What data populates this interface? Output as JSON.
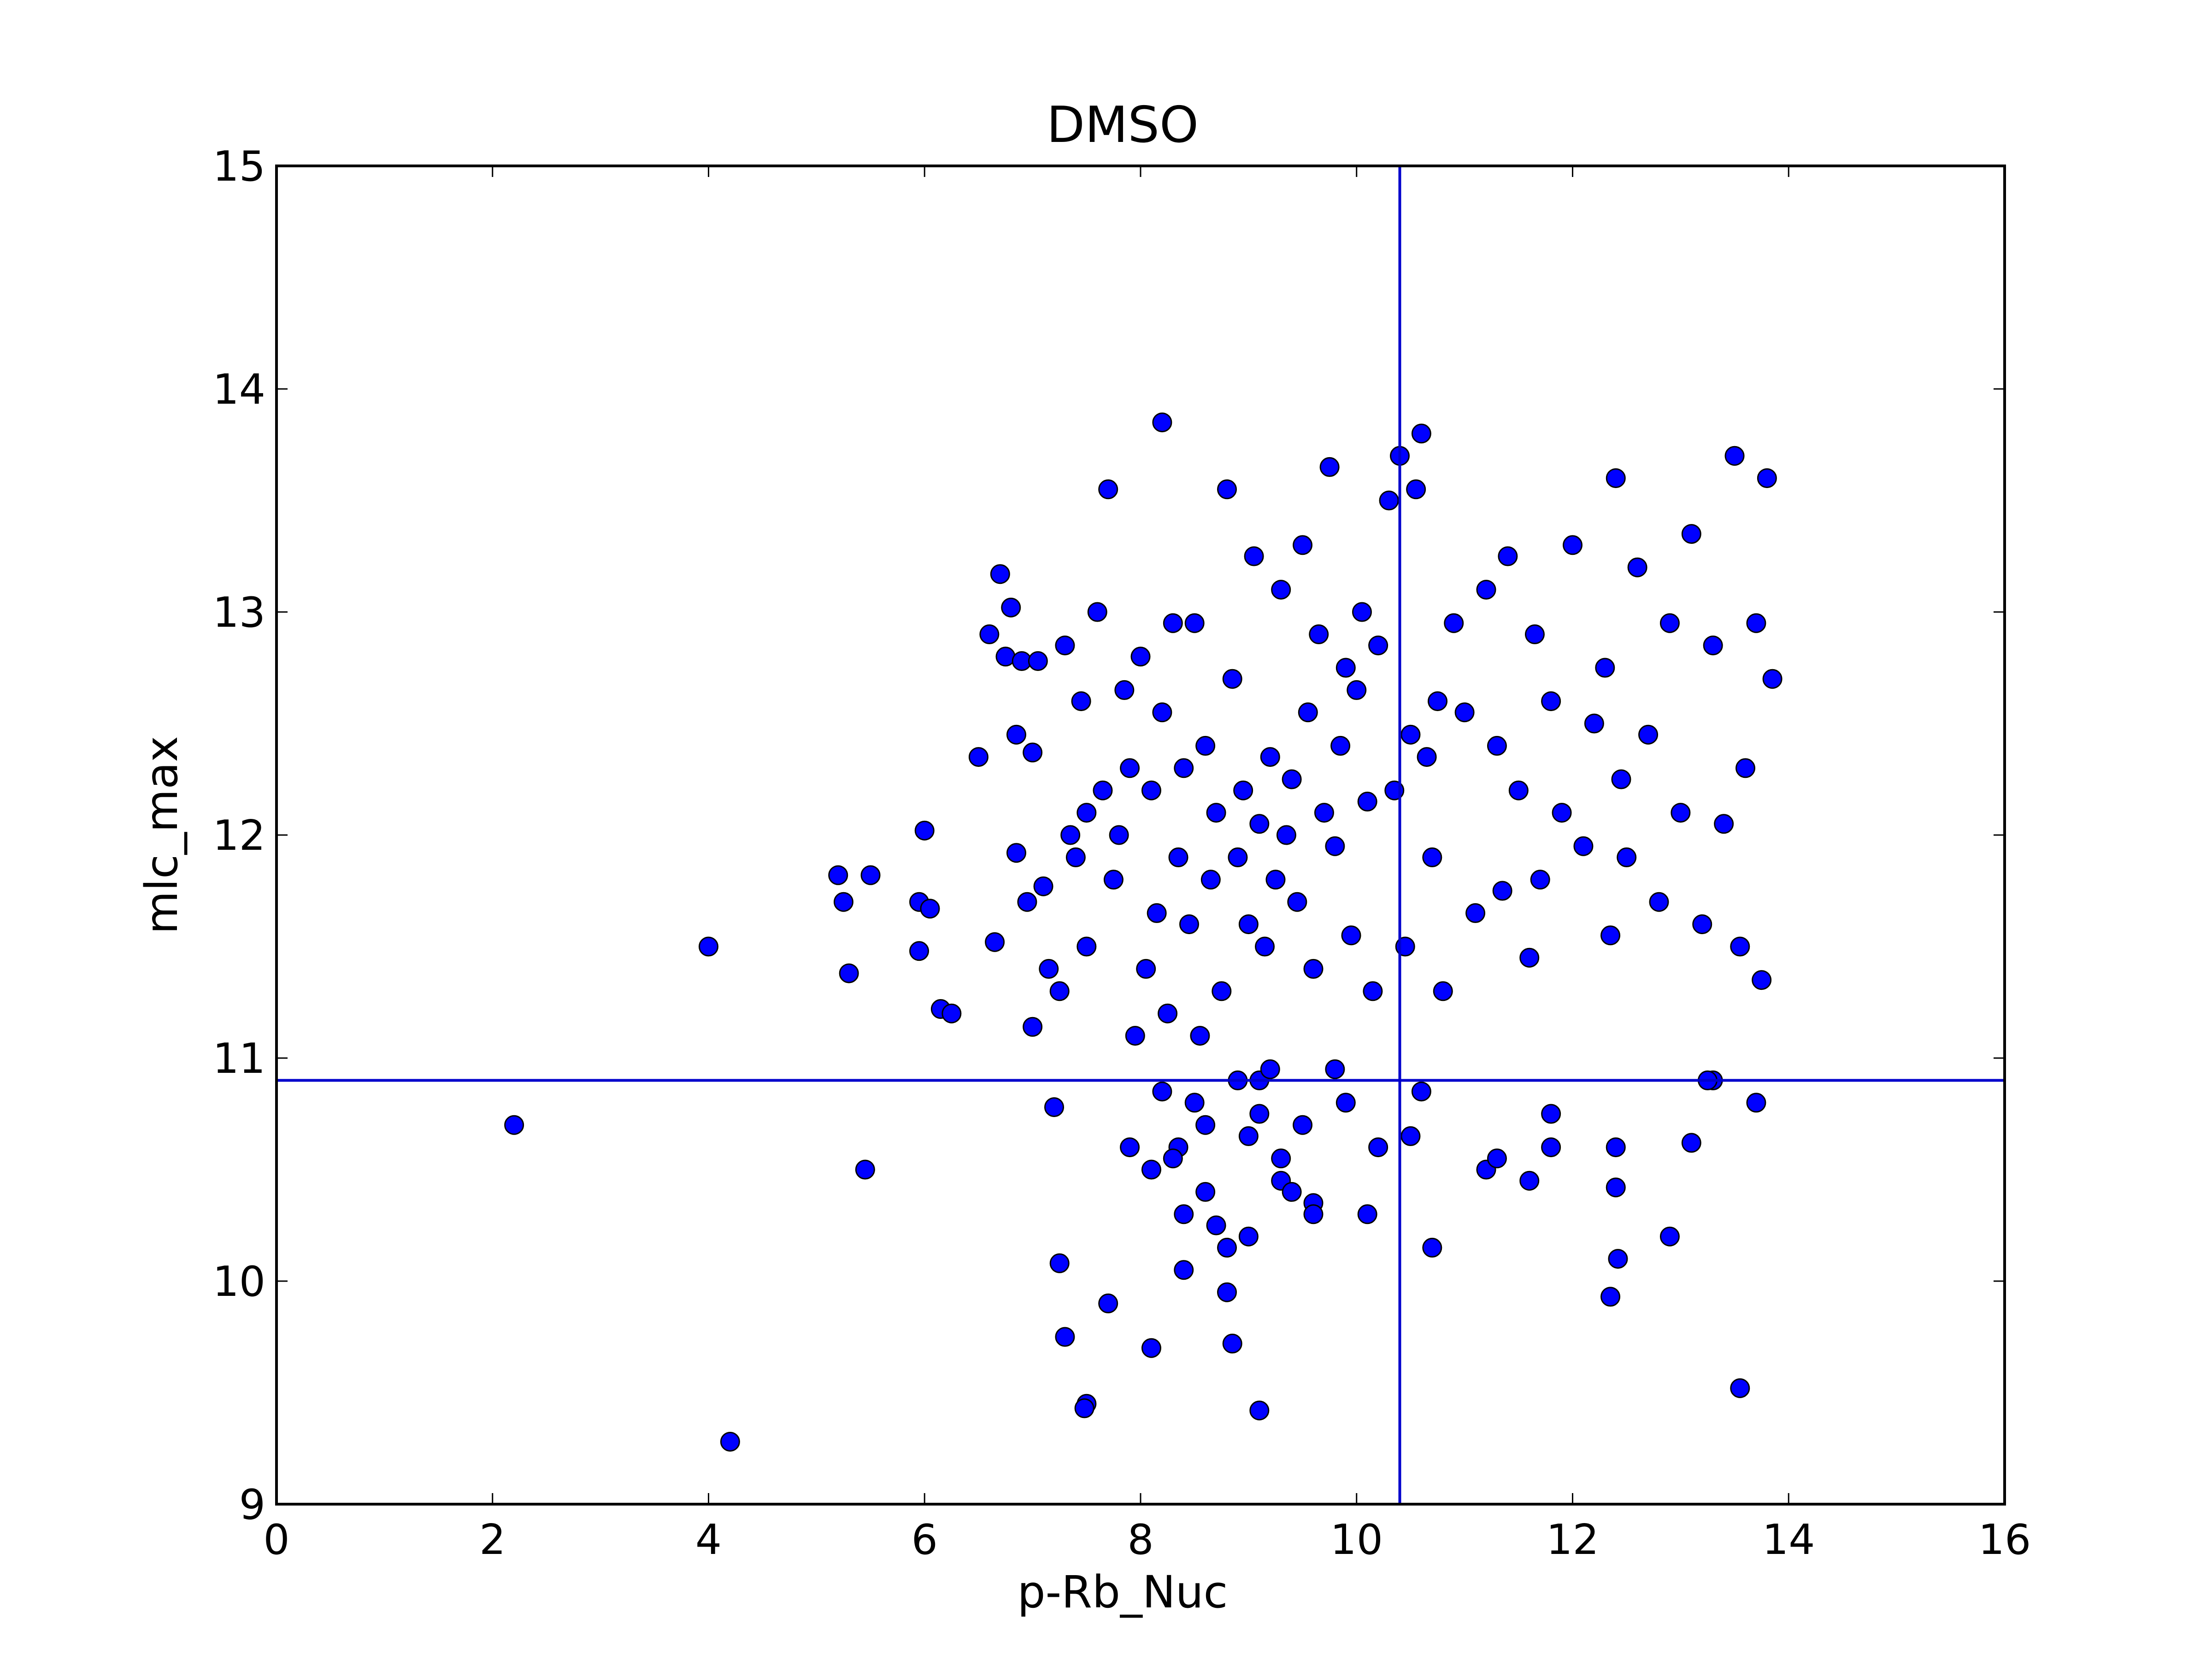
{
  "chart_data": {
    "type": "scatter",
    "title": "DMSO",
    "xlabel": "p-Rb_Nuc",
    "ylabel": "mlc_max",
    "xlim": [
      0,
      16
    ],
    "ylim": [
      9,
      15
    ],
    "xticks": [
      0,
      2,
      4,
      6,
      8,
      10,
      12,
      14,
      16
    ],
    "yticks": [
      9,
      10,
      11,
      12,
      13,
      14,
      15
    ],
    "xtick_labels": [
      "0",
      "2",
      "4",
      "6",
      "8",
      "10",
      "12",
      "14",
      "16"
    ],
    "ytick_labels": [
      "9",
      "10",
      "11",
      "12",
      "13",
      "14",
      "15"
    ],
    "grid": false,
    "reference_lines": {
      "vertical_x": 10.4,
      "horizontal_y": 10.9
    },
    "colors": {
      "marker_fill": "#0000ff",
      "marker_edge": "#000000",
      "reference_line": "#0000cc"
    },
    "series": [
      {
        "x": [
          2.2,
          4.0,
          4.2,
          5.2,
          5.25,
          5.3,
          5.45,
          5.5,
          5.95,
          6.0,
          5.95,
          6.05,
          6.15,
          6.25,
          6.5,
          6.6,
          6.65,
          6.7,
          6.75,
          6.8,
          6.85,
          6.85,
          6.9,
          6.95,
          7.0,
          7.0,
          7.05,
          7.1,
          7.15,
          7.2,
          7.25,
          7.25,
          7.3,
          7.35,
          7.4,
          7.45,
          7.5,
          7.5,
          7.6,
          7.65,
          7.7,
          7.75,
          7.8,
          7.85,
          7.9,
          7.95,
          8.0,
          8.05,
          8.1,
          8.15,
          8.2,
          8.2,
          8.25,
          8.3,
          8.35,
          8.4,
          8.45,
          8.5,
          8.55,
          8.6,
          8.65,
          8.7,
          8.75,
          8.8,
          8.85,
          8.9,
          8.95,
          9.0,
          9.05,
          9.1,
          9.15,
          9.2,
          9.25,
          9.3,
          9.35,
          9.4,
          9.45,
          9.5,
          9.55,
          9.6,
          9.65,
          9.7,
          9.75,
          9.8,
          9.85,
          9.9,
          9.95,
          10.0,
          10.05,
          10.1,
          10.15,
          10.2,
          10.3,
          10.35,
          10.4,
          10.45,
          10.5,
          10.55,
          10.6,
          10.65,
          10.7,
          10.75,
          10.8,
          10.9,
          11.0,
          11.1,
          11.2,
          11.3,
          11.35,
          11.4,
          11.5,
          11.6,
          11.65,
          11.7,
          11.8,
          11.9,
          12.0,
          12.1,
          12.2,
          12.3,
          12.35,
          12.4,
          12.45,
          12.5,
          12.6,
          12.7,
          12.8,
          12.9,
          13.0,
          13.1,
          13.2,
          13.3,
          13.4,
          13.5,
          13.55,
          13.6,
          13.7,
          13.75,
          13.8,
          13.85,
          8.2,
          8.35,
          8.6,
          8.9,
          9.1,
          9.3,
          9.6,
          9.9,
          10.2,
          10.6,
          8.4,
          8.7,
          9.0,
          9.3,
          9.6,
          8.5,
          8.8,
          9.1,
          8.3,
          8.6,
          9.2,
          9.0,
          8.8,
          8.4,
          9.5,
          8.1,
          7.9,
          7.7,
          9.4,
          9.8,
          10.1,
          10.5,
          11.2,
          11.8,
          12.4,
          12.9,
          13.3,
          13.7,
          7.3,
          7.5,
          8.1,
          7.48,
          9.1,
          8.85,
          13.55,
          12.35,
          12.42,
          12.4,
          10.7,
          11.6,
          13.1,
          13.25,
          11.8,
          11.3
        ],
        "y": [
          10.7,
          11.5,
          9.28,
          11.82,
          11.7,
          11.38,
          10.5,
          11.82,
          11.48,
          12.02,
          11.7,
          11.67,
          11.22,
          11.2,
          12.35,
          12.9,
          11.52,
          13.17,
          12.8,
          13.02,
          12.45,
          11.92,
          12.78,
          11.7,
          12.37,
          11.14,
          12.78,
          11.77,
          11.4,
          10.78,
          11.3,
          10.08,
          12.85,
          12.0,
          11.9,
          12.6,
          12.1,
          11.5,
          13.0,
          12.2,
          13.55,
          11.8,
          12.0,
          12.65,
          12.3,
          11.1,
          12.8,
          11.4,
          12.2,
          11.65,
          13.85,
          12.55,
          11.2,
          12.95,
          11.9,
          12.3,
          11.6,
          12.95,
          11.1,
          12.4,
          11.8,
          12.1,
          11.3,
          13.55,
          12.7,
          11.9,
          12.2,
          11.6,
          13.25,
          12.05,
          11.5,
          12.35,
          11.8,
          13.1,
          12.0,
          12.25,
          11.7,
          13.3,
          12.55,
          11.4,
          12.9,
          12.1,
          13.65,
          11.95,
          12.4,
          12.75,
          11.55,
          12.65,
          13.0,
          12.15,
          11.3,
          12.85,
          13.5,
          12.2,
          13.7,
          11.5,
          12.45,
          13.55,
          13.8,
          12.35,
          11.9,
          12.6,
          11.3,
          12.95,
          12.55,
          11.65,
          13.1,
          12.4,
          11.75,
          13.25,
          12.2,
          11.45,
          12.9,
          11.8,
          12.6,
          12.1,
          13.3,
          11.95,
          12.5,
          12.75,
          11.55,
          13.6,
          12.25,
          11.9,
          13.2,
          12.45,
          11.7,
          12.95,
          12.1,
          13.35,
          11.6,
          12.85,
          12.05,
          13.7,
          11.5,
          12.3,
          12.95,
          11.35,
          13.6,
          12.7,
          10.85,
          10.6,
          10.4,
          10.9,
          10.75,
          10.55,
          10.35,
          10.8,
          10.6,
          10.85,
          10.3,
          10.25,
          10.65,
          10.45,
          10.3,
          10.8,
          10.15,
          10.9,
          10.55,
          10.7,
          10.95,
          10.2,
          9.95,
          10.05,
          10.7,
          9.7,
          10.6,
          9.9,
          10.4,
          10.95,
          10.3,
          10.65,
          10.5,
          10.75,
          10.6,
          10.2,
          10.9,
          10.8,
          9.75,
          9.45,
          10.5,
          9.43,
          9.42,
          9.72,
          9.52,
          9.93,
          10.1,
          10.42,
          10.15,
          10.45,
          10.62,
          10.9,
          10.6,
          10.55
        ]
      }
    ]
  }
}
